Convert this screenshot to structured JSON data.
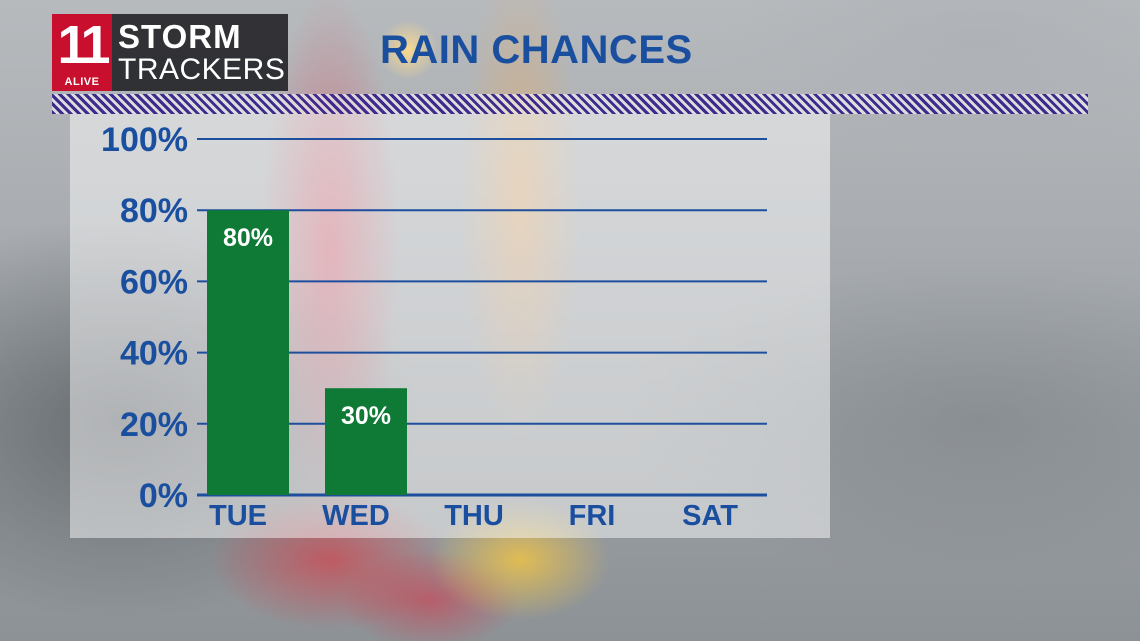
{
  "branding": {
    "logo_number": "11",
    "logo_alive": "ALIVE",
    "logo_storm": "STORM",
    "logo_trackers": "TRACKERS"
  },
  "colors": {
    "axis_text": "#1a4fa0",
    "bar": "#0e7a35",
    "gridline": "#1e4e9e",
    "stripe": "#3f2b8c",
    "logo_red": "#c8102e"
  },
  "chart_data": {
    "type": "bar",
    "title": "RAIN CHANCES",
    "categories": [
      "TUE",
      "WED",
      "THU",
      "FRI",
      "SAT"
    ],
    "values": [
      80,
      30,
      null,
      null,
      null
    ],
    "data_labels": [
      "80%",
      "30%",
      "",
      "",
      ""
    ],
    "ylim": [
      0,
      100
    ],
    "yticks": [
      "0%",
      "20%",
      "40%",
      "60%",
      "80%",
      "100%"
    ],
    "grid": true,
    "legend": "none"
  }
}
